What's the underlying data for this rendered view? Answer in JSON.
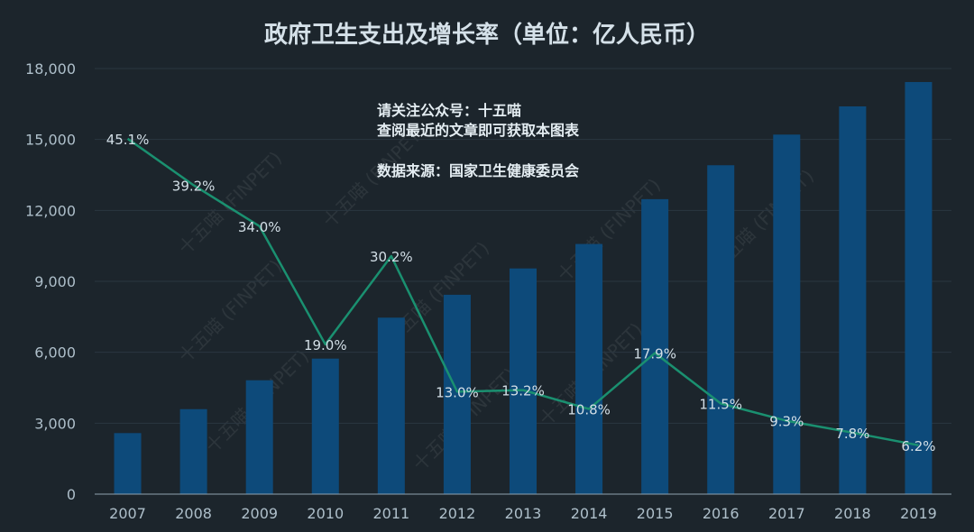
{
  "colors": {
    "background": "#1c252c",
    "bar": "#0d4a7a",
    "line": "#1a9070",
    "grid": "#2a3640",
    "axis_text": "#aebfca"
  },
  "chart_data": {
    "type": "bar",
    "title": "政府卫生支出及增长率（单位：亿人民币）",
    "xlabel": "",
    "ylabel": "",
    "categories": [
      "2007",
      "2008",
      "2009",
      "2010",
      "2011",
      "2012",
      "2013",
      "2014",
      "2015",
      "2016",
      "2017",
      "2018",
      "2019"
    ],
    "ylim": [
      0,
      18000
    ],
    "y_ticks": [
      "0",
      "3,000",
      "6,000",
      "9,000",
      "12,000",
      "15,000",
      "18,000"
    ],
    "grid": true,
    "series": [
      {
        "type": "bar",
        "values": [
          2582,
          3594,
          4816,
          5732,
          7464,
          8432,
          9546,
          10579,
          12475,
          13910,
          15206,
          16399,
          17429
        ]
      },
      {
        "type": "line",
        "values": [
          45.1,
          39.2,
          34.0,
          19.0,
          30.2,
          13.0,
          13.2,
          10.8,
          17.9,
          11.5,
          9.3,
          7.8,
          6.2
        ],
        "labels": [
          "45.1%",
          "39.2%",
          "34.0%",
          "19.0%",
          "30.2%",
          "13.0%",
          "13.2%",
          "10.8%",
          "17.9%",
          "11.5%",
          "9.3%",
          "7.8%",
          "6.2%"
        ]
      }
    ],
    "annotations": [
      "请关注公众号：十五喵",
      "查阅最近的文章即可获取本图表",
      "数据来源：国家卫生健康委员会"
    ],
    "watermark": "十五喵 (FINPET)"
  }
}
